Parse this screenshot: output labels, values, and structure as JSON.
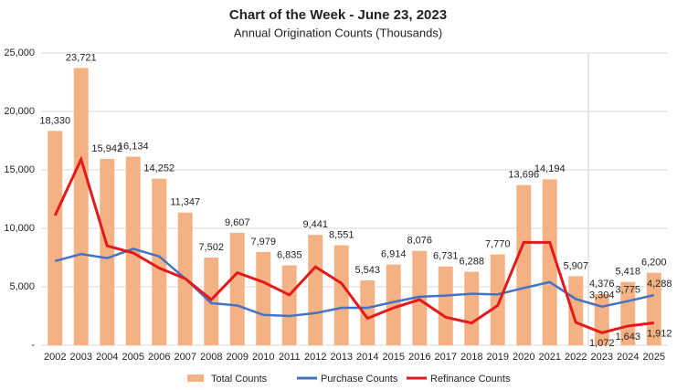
{
  "chart_data": {
    "type": "bar",
    "title": "Chart of the Week - June 23, 2023",
    "subtitle": "Annual Origination Counts (Thousands)",
    "categories": [
      "2002",
      "2003",
      "2004",
      "2005",
      "2006",
      "2007",
      "2008",
      "2009",
      "2010",
      "2011",
      "2012",
      "2013",
      "2014",
      "2015",
      "2016",
      "2017",
      "2018",
      "2019",
      "2020",
      "2021",
      "2022",
      "2023",
      "2024",
      "2025"
    ],
    "series": [
      {
        "name": "Total Counts",
        "type": "bar",
        "color": "#f4b183",
        "values": [
          18330,
          23721,
          15942,
          16134,
          14252,
          11347,
          7502,
          9607,
          7979,
          6835,
          9441,
          8551,
          5543,
          6914,
          8076,
          6731,
          6288,
          7770,
          13696,
          14194,
          5907,
          4376,
          5418,
          6200
        ],
        "value_labels": [
          "18,330",
          "23,721",
          "15,942",
          "16,134",
          "14,252",
          "11,347",
          "7,502",
          "9,607",
          "7,979",
          "6,835",
          "9,441",
          "8,551",
          "5,543",
          "6,914",
          "8,076",
          "6,731",
          "6,288",
          "7,770",
          "13,696",
          "14,194",
          "5,907",
          "4,376",
          "5,418",
          "6,200"
        ]
      },
      {
        "name": "Purchase Counts",
        "type": "line",
        "color": "#4472c4",
        "values": [
          7200,
          7800,
          7450,
          8250,
          7600,
          5700,
          3600,
          3400,
          2600,
          2500,
          2750,
          3200,
          3200,
          3700,
          4150,
          4250,
          4400,
          4350,
          4900,
          5400,
          3950,
          3304,
          3775,
          4288
        ],
        "value_labels": [
          null,
          null,
          null,
          null,
          null,
          null,
          null,
          null,
          null,
          null,
          null,
          null,
          null,
          null,
          null,
          null,
          null,
          null,
          null,
          null,
          null,
          "3,304",
          "3,775",
          "4,288"
        ]
      },
      {
        "name": "Refinance Counts",
        "type": "line",
        "color": "#e31a1c",
        "values": [
          11100,
          15900,
          8500,
          7900,
          6600,
          5700,
          3900,
          6200,
          5400,
          4300,
          6700,
          5300,
          2300,
          3200,
          3900,
          2400,
          1900,
          3400,
          8800,
          8800,
          1950,
          1072,
          1643,
          1912
        ],
        "value_labels": [
          null,
          null,
          null,
          null,
          null,
          null,
          null,
          null,
          null,
          null,
          null,
          null,
          null,
          null,
          null,
          null,
          null,
          null,
          null,
          null,
          null,
          "1,072",
          "1,643",
          "1,912"
        ]
      }
    ],
    "ylim": [
      0,
      25000
    ],
    "yticks": [
      {
        "value": 0,
        "label": "-"
      },
      {
        "value": 5000,
        "label": "5,000"
      },
      {
        "value": 10000,
        "label": "10,000"
      },
      {
        "value": 15000,
        "label": "15,000"
      },
      {
        "value": 20000,
        "label": "20,000"
      },
      {
        "value": 25000,
        "label": "25,000"
      }
    ],
    "grid": true
  }
}
